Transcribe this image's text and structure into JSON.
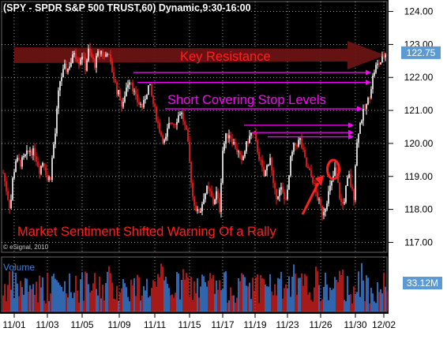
{
  "header": {
    "title": "(SPY - SPDR S&P 500 TRUST,60) Dynamic,9:30-16:00"
  },
  "watermark": "© eSignal, 2010",
  "colors": {
    "background": "#000000",
    "up": "#ffffff",
    "down": "#ff2020",
    "grid": "#ffffff",
    "axis_bg": "#ffffff",
    "price_label_bg": "#5a9bd5",
    "volume_up": "#3c7fd8",
    "volume_down": "#d02020",
    "annotation_magenta": "#ff00ff",
    "annotation_red": "#ff2020",
    "resistance_arrow": "#6e1414"
  },
  "chart_data": {
    "type": "candlestick",
    "title": "(SPY - SPDR S&P 500 TRUST,60) Dynamic,9:30-16:00",
    "x_ticks": [
      "11/01",
      "11/03",
      "11/05",
      "11/09",
      "11/11",
      "11/15",
      "11/17",
      "11/19",
      "11/23",
      "11/26",
      "11/30",
      "12/02"
    ],
    "y_ticks": [
      "124.00",
      "123.00",
      "122.00",
      "121.00",
      "120.00",
      "119.00",
      "118.00",
      "117.00"
    ],
    "ylim": [
      116.7,
      124.3
    ],
    "grid": true,
    "last_price_label": "122.75",
    "volume_label": "Volume",
    "volume_last_label": "33.12M",
    "price_path": [
      [
        0,
        119.1
      ],
      [
        4,
        118.6
      ],
      [
        9,
        118.0
      ],
      [
        12,
        118.9
      ],
      [
        16,
        119.5
      ],
      [
        22,
        119.4
      ],
      [
        28,
        119.6
      ],
      [
        34,
        119.8
      ],
      [
        40,
        119.7
      ],
      [
        46,
        119.2
      ],
      [
        51,
        119.5
      ],
      [
        56,
        118.9
      ],
      [
        60,
        119.0
      ],
      [
        63,
        119.8
      ],
      [
        66,
        120.3
      ],
      [
        69,
        121.3
      ],
      [
        72,
        121.9
      ],
      [
        75,
        122.1
      ],
      [
        78,
        122.3
      ],
      [
        81,
        122.2
      ],
      [
        84,
        122.4
      ],
      [
        87,
        122.5
      ],
      [
        90,
        122.8
      ],
      [
        93,
        122.6
      ],
      [
        96,
        122.5
      ],
      [
        100,
        122.7
      ],
      [
        104,
        122.3
      ],
      [
        108,
        122.8
      ],
      [
        112,
        122.6
      ],
      [
        116,
        122.4
      ],
      [
        120,
        122.7
      ],
      [
        124,
        122.8
      ],
      [
        128,
        122.6
      ],
      [
        132,
        122.8
      ],
      [
        136,
        122.4
      ],
      [
        140,
        122.0
      ],
      [
        144,
        121.6
      ],
      [
        148,
        121.4
      ],
      [
        151,
        121.0
      ],
      [
        154,
        121.5
      ],
      [
        157,
        121.8
      ],
      [
        161,
        122.0
      ],
      [
        165,
        121.6
      ],
      [
        169,
        121.3
      ],
      [
        173,
        121.2
      ],
      [
        177,
        121.1
      ],
      [
        181,
        121.5
      ],
      [
        185,
        121.8
      ],
      [
        189,
        121.3
      ],
      [
        193,
        120.9
      ],
      [
        197,
        120.5
      ],
      [
        201,
        120.2
      ],
      [
        205,
        120.0
      ],
      [
        209,
        120.5
      ],
      [
        213,
        120.7
      ],
      [
        217,
        120.6
      ],
      [
        221,
        120.8
      ],
      [
        225,
        121.0
      ],
      [
        229,
        120.6
      ],
      [
        233,
        120.2
      ],
      [
        236,
        119.4
      ],
      [
        238,
        118.9
      ],
      [
        240,
        118.4
      ],
      [
        243,
        118.1
      ],
      [
        246,
        117.9
      ],
      [
        250,
        118.0
      ],
      [
        254,
        118.4
      ],
      [
        258,
        118.6
      ],
      [
        262,
        118.5
      ],
      [
        266,
        118.2
      ],
      [
        270,
        118.5
      ],
      [
        274,
        118.0
      ],
      [
        278,
        119.8
      ],
      [
        282,
        120.2
      ],
      [
        286,
        120.3
      ],
      [
        290,
        120.1
      ],
      [
        294,
        119.9
      ],
      [
        298,
        119.7
      ],
      [
        302,
        119.4
      ],
      [
        306,
        119.8
      ],
      [
        310,
        120.1
      ],
      [
        314,
        120.3
      ],
      [
        318,
        120.2
      ],
      [
        322,
        119.8
      ],
      [
        326,
        119.4
      ],
      [
        330,
        119.0
      ],
      [
        334,
        119.3
      ],
      [
        338,
        119.6
      ],
      [
        342,
        118.7
      ],
      [
        345,
        118.4
      ],
      [
        348,
        118.5
      ],
      [
        352,
        118.6
      ],
      [
        356,
        118.3
      ],
      [
        360,
        118.5
      ],
      [
        364,
        119.5
      ],
      [
        368,
        119.9
      ],
      [
        372,
        120.0
      ],
      [
        376,
        120.1
      ],
      [
        380,
        119.7
      ],
      [
        384,
        119.3
      ],
      [
        388,
        119.1
      ],
      [
        392,
        118.9
      ],
      [
        396,
        118.5
      ],
      [
        400,
        118.2
      ],
      [
        404,
        117.9
      ],
      [
        408,
        118.1
      ],
      [
        412,
        118.5
      ],
      [
        416,
        118.8
      ],
      [
        420,
        119.2
      ],
      [
        423,
        118.9
      ],
      [
        426,
        118.4
      ],
      [
        429,
        118.1
      ],
      [
        432,
        118.3
      ],
      [
        435,
        118.8
      ],
      [
        438,
        119.0
      ],
      [
        441,
        118.6
      ],
      [
        444,
        118.4
      ],
      [
        446,
        119.4
      ],
      [
        449,
        120.3
      ],
      [
        453,
        120.7
      ],
      [
        457,
        121.0
      ],
      [
        461,
        121.2
      ],
      [
        465,
        121.6
      ],
      [
        468,
        122.0
      ],
      [
        471,
        122.3
      ],
      [
        475,
        122.4
      ],
      [
        479,
        122.5
      ],
      [
        483,
        122.7
      ],
      [
        487,
        122.75
      ]
    ],
    "annotations": [
      {
        "text": "Key Resistance",
        "color": "#ff2020"
      },
      {
        "text": "Short Covering Stop Levels",
        "color": "#ff00ff"
      },
      {
        "text": "Market Sentiment Shifted Warning Of a Rally",
        "color": "#ff2020"
      }
    ],
    "stop_levels": [
      {
        "from_x": 165,
        "to_x": 466,
        "price": 122.15
      },
      {
        "from_x": 170,
        "to_x": 466,
        "price": 121.85
      },
      {
        "from_x": 205,
        "to_x": 455,
        "price": 121.05
      },
      {
        "from_x": 305,
        "to_x": 444,
        "price": 120.55
      },
      {
        "from_x": 315,
        "to_x": 444,
        "price": 120.33
      },
      {
        "from_x": 335,
        "to_x": 444,
        "price": 120.2
      }
    ]
  }
}
